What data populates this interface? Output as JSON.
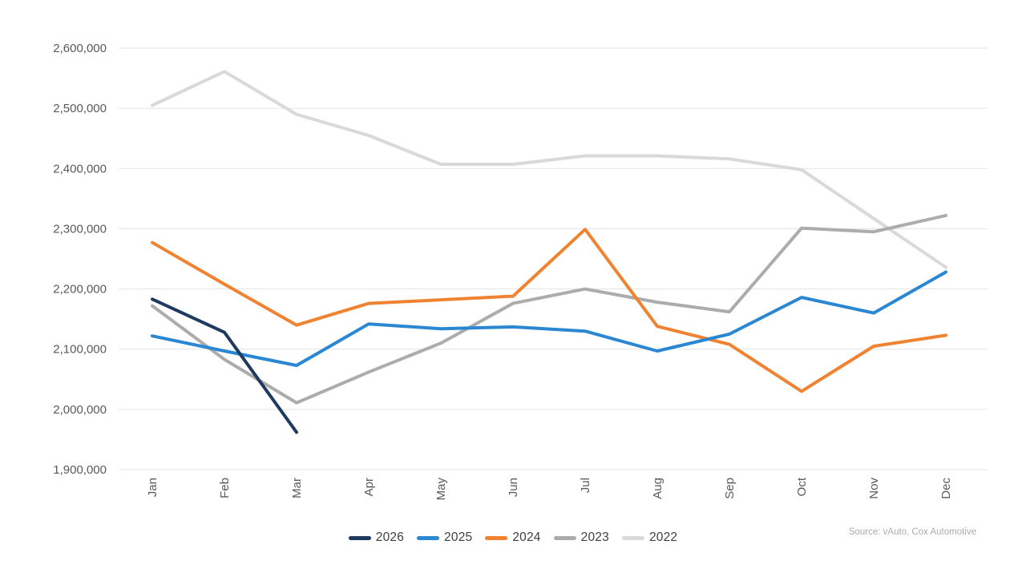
{
  "source_note": "Source: vAuto, Cox Automotive",
  "colors": {
    "grid": "#E3E3E3",
    "tick_text": "#595959",
    "legend_text": "#404040",
    "source_text": "#ABABAB",
    "background": "#FFFFFF"
  },
  "chart_data": {
    "type": "line",
    "title": "",
    "xlabel": "",
    "ylabel": "",
    "categories": [
      "Jan",
      "Feb",
      "Mar",
      "Apr",
      "May",
      "Jun",
      "Jul",
      "Aug",
      "Sep",
      "Oct",
      "Nov",
      "Dec"
    ],
    "series": [
      {
        "name": "2026",
        "color": "#1F3A60",
        "values": [
          2183000,
          2128000,
          1962000
        ]
      },
      {
        "name": "2025",
        "color": "#2B87D1",
        "values": [
          2122000,
          2097000,
          2073000,
          2142000,
          2134000,
          2137000,
          2130000,
          2097000,
          2125000,
          2186000,
          2160000,
          2228000
        ]
      },
      {
        "name": "2024",
        "color": "#F08332",
        "values": [
          2277000,
          2208000,
          2140000,
          2176000,
          2182000,
          2188000,
          2299000,
          2138000,
          2108000,
          2030000,
          2105000,
          2123000
        ]
      },
      {
        "name": "2023",
        "color": "#ACACAC",
        "values": [
          2172000,
          2083000,
          2011000,
          2062000,
          2110000,
          2176000,
          2200000,
          2178000,
          2162000,
          2301000,
          2295000,
          2322000
        ]
      },
      {
        "name": "2022",
        "color": "#D9D9D9",
        "values": [
          2505000,
          2561000,
          2490000,
          2455000,
          2407000,
          2407000,
          2421000,
          2421000,
          2416000,
          2398000,
          2317000,
          2236000
        ]
      }
    ],
    "ylim": [
      1900000,
      2600000
    ],
    "ytick_step": 100000,
    "ytick_labels": [
      "1,900,000",
      "2,000,000",
      "2,100,000",
      "2,200,000",
      "2,300,000",
      "2,400,000",
      "2,500,000",
      "2,600,000"
    ],
    "grid": true,
    "legend_position": "bottom",
    "legend_order": [
      "2026",
      "2025",
      "2024",
      "2023",
      "2022"
    ]
  }
}
